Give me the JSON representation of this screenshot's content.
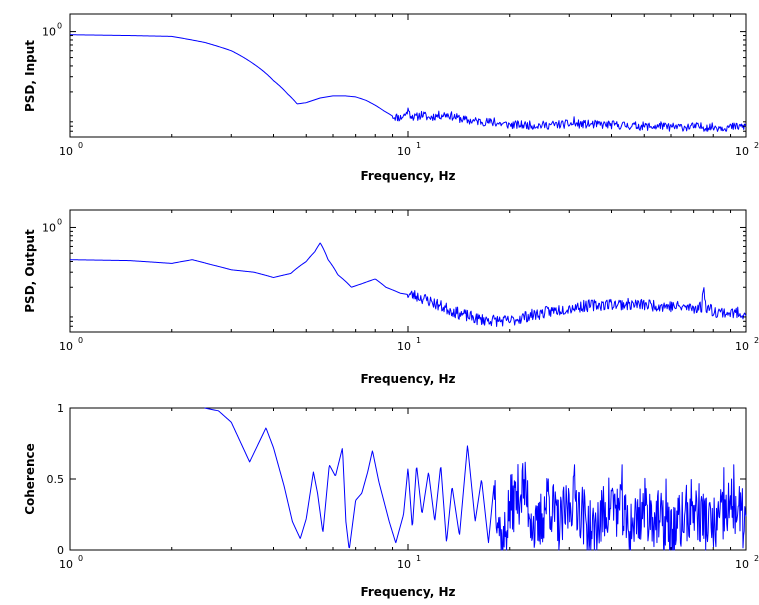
{
  "chart_data": [
    {
      "type": "line",
      "xlabel": "Frequency, Hz",
      "ylabel": "PSD, Input",
      "xscale": "log",
      "yscale": "log",
      "xlim": [
        1,
        100
      ],
      "ylim": [
        0.06,
        1.6
      ],
      "xticks": [
        {
          "value": 1,
          "base": "10",
          "exp": "0"
        },
        {
          "value": 10,
          "base": "10",
          "exp": "1"
        },
        {
          "value": 100,
          "base": "10",
          "exp": "2"
        }
      ],
      "yticks": [
        {
          "value": 1,
          "base": "10",
          "exp": "0"
        }
      ],
      "grid": false,
      "color": "#0000ff",
      "anchors": [
        [
          1.0,
          0.92
        ],
        [
          1.5,
          0.9
        ],
        [
          2.0,
          0.88
        ],
        [
          2.5,
          0.75
        ],
        [
          3.0,
          0.6
        ],
        [
          3.5,
          0.42
        ],
        [
          4.0,
          0.27
        ],
        [
          4.4,
          0.19
        ],
        [
          4.7,
          0.145
        ],
        [
          5.0,
          0.15
        ],
        [
          5.5,
          0.17
        ],
        [
          6.0,
          0.18
        ],
        [
          6.5,
          0.18
        ],
        [
          7.0,
          0.175
        ],
        [
          7.5,
          0.16
        ],
        [
          8.0,
          0.14
        ],
        [
          8.5,
          0.12
        ],
        [
          9.0,
          0.105
        ],
        [
          9.5,
          0.1
        ],
        [
          10.0,
          0.115
        ],
        [
          10.5,
          0.1
        ],
        [
          11.0,
          0.11
        ],
        [
          11.5,
          0.1
        ],
        [
          12.0,
          0.105
        ],
        [
          13.0,
          0.11
        ],
        [
          14.0,
          0.1
        ],
        [
          15.0,
          0.093
        ],
        [
          17.0,
          0.09
        ],
        [
          20.0,
          0.083
        ],
        [
          25.0,
          0.082
        ],
        [
          30.0,
          0.085
        ],
        [
          40.0,
          0.083
        ],
        [
          50.0,
          0.08
        ],
        [
          60.0,
          0.078
        ],
        [
          70.0,
          0.079
        ],
        [
          80.0,
          0.078
        ],
        [
          90.0,
          0.078
        ],
        [
          100.0,
          0.08
        ]
      ],
      "spikes": [
        [
          10.0,
          0.13
        ],
        [
          12.8,
          0.115
        ],
        [
          18.0,
          0.1
        ],
        [
          31.0,
          0.103
        ],
        [
          36.0,
          0.09
        ],
        [
          56.0,
          0.09
        ]
      ],
      "noise": {
        "start": 9.0,
        "amplitude": 0.05,
        "seed": 11
      }
    },
    {
      "type": "line",
      "xlabel": "Frequency, Hz",
      "ylabel": "PSD, Output",
      "xscale": "log",
      "yscale": "log",
      "xlim": [
        1,
        100
      ],
      "ylim": [
        0.06,
        1.6
      ],
      "xticks": [
        {
          "value": 1,
          "base": "10",
          "exp": "0"
        },
        {
          "value": 10,
          "base": "10",
          "exp": "1"
        },
        {
          "value": 100,
          "base": "10",
          "exp": "2"
        }
      ],
      "yticks": [
        {
          "value": 1,
          "base": "10",
          "exp": "0"
        }
      ],
      "grid": false,
      "color": "#0000ff",
      "anchors": [
        [
          1.0,
          0.42
        ],
        [
          1.5,
          0.41
        ],
        [
          2.0,
          0.38
        ],
        [
          2.3,
          0.42
        ],
        [
          2.6,
          0.37
        ],
        [
          3.0,
          0.32
        ],
        [
          3.5,
          0.3
        ],
        [
          4.0,
          0.26
        ],
        [
          4.5,
          0.29
        ],
        [
          5.0,
          0.4
        ],
        [
          5.3,
          0.52
        ],
        [
          5.5,
          0.66
        ],
        [
          5.8,
          0.42
        ],
        [
          6.2,
          0.28
        ],
        [
          6.8,
          0.2
        ],
        [
          7.3,
          0.22
        ],
        [
          8.0,
          0.25
        ],
        [
          8.6,
          0.2
        ],
        [
          9.5,
          0.17
        ],
        [
          10.5,
          0.16
        ],
        [
          11.5,
          0.14
        ],
        [
          12.5,
          0.12
        ],
        [
          14.0,
          0.1
        ],
        [
          16.0,
          0.085
        ],
        [
          18.0,
          0.082
        ],
        [
          20.0,
          0.08
        ],
        [
          22.0,
          0.09
        ],
        [
          25.0,
          0.1
        ],
        [
          30.0,
          0.115
        ],
        [
          35.0,
          0.123
        ],
        [
          40.0,
          0.128
        ],
        [
          50.0,
          0.125
        ],
        [
          60.0,
          0.12
        ],
        [
          70.0,
          0.115
        ],
        [
          74.0,
          0.118
        ],
        [
          75.0,
          0.2
        ],
        [
          76.0,
          0.12
        ],
        [
          80.0,
          0.105
        ],
        [
          90.0,
          0.1
        ],
        [
          100.0,
          0.1
        ]
      ],
      "spikes": [],
      "noise": {
        "start": 10.0,
        "amplitude": 0.07,
        "seed": 23
      }
    },
    {
      "type": "line",
      "xlabel": "Frequency, Hz",
      "ylabel": "Coherence",
      "xscale": "log",
      "yscale": "linear",
      "xlim": [
        1,
        100
      ],
      "ylim": [
        0,
        1
      ],
      "xticks": [
        {
          "value": 1,
          "base": "10",
          "exp": "0"
        },
        {
          "value": 10,
          "base": "10",
          "exp": "1"
        },
        {
          "value": 100,
          "base": "10",
          "exp": "2"
        }
      ],
      "yticks": [
        {
          "value": 0,
          "label": "0"
        },
        {
          "value": 0.5,
          "label": "0.5"
        },
        {
          "value": 1,
          "label": "1"
        }
      ],
      "grid": false,
      "color": "#0000ff",
      "anchors": [
        [
          2.5,
          1.0
        ],
        [
          2.75,
          0.98
        ],
        [
          3.0,
          0.9
        ],
        [
          3.4,
          0.62
        ],
        [
          3.8,
          0.86
        ],
        [
          4.0,
          0.72
        ],
        [
          4.3,
          0.45
        ],
        [
          4.55,
          0.2
        ],
        [
          4.8,
          0.08
        ],
        [
          5.0,
          0.22
        ],
        [
          5.25,
          0.55
        ],
        [
          5.4,
          0.4
        ],
        [
          5.6,
          0.12
        ],
        [
          5.85,
          0.6
        ],
        [
          6.1,
          0.52
        ],
        [
          6.4,
          0.72
        ],
        [
          6.55,
          0.2
        ],
        [
          6.7,
          0.0
        ],
        [
          7.0,
          0.35
        ],
        [
          7.3,
          0.4
        ],
        [
          7.6,
          0.55
        ],
        [
          7.85,
          0.7
        ],
        [
          8.2,
          0.48
        ],
        [
          8.8,
          0.2
        ],
        [
          9.2,
          0.05
        ],
        [
          9.7,
          0.25
        ],
        [
          10.0,
          0.58
        ],
        [
          10.3,
          0.15
        ],
        [
          10.6,
          0.6
        ],
        [
          11.0,
          0.25
        ],
        [
          11.5,
          0.55
        ],
        [
          12.0,
          0.2
        ],
        [
          12.5,
          0.6
        ],
        [
          13.0,
          0.05
        ],
        [
          13.5,
          0.45
        ],
        [
          14.2,
          0.1
        ],
        [
          15.0,
          0.74
        ],
        [
          15.8,
          0.2
        ],
        [
          16.5,
          0.5
        ],
        [
          17.3,
          0.05
        ],
        [
          18.0,
          0.48
        ],
        [
          19.0,
          0.0
        ],
        [
          20.0,
          0.3
        ],
        [
          22.0,
          0.45
        ],
        [
          24.0,
          0.1
        ],
        [
          26.0,
          0.38
        ],
        [
          28.0,
          0.15
        ],
        [
          31.0,
          0.4
        ],
        [
          35.0,
          0.1
        ],
        [
          40.0,
          0.35
        ],
        [
          45.0,
          0.15
        ],
        [
          50.0,
          0.3
        ],
        [
          60.0,
          0.12
        ],
        [
          70.0,
          0.3
        ],
        [
          80.0,
          0.15
        ],
        [
          90.0,
          0.3
        ],
        [
          100.0,
          0.2
        ]
      ],
      "spikes": [
        [
          26.0,
          0.5
        ],
        [
          43.0,
          0.6
        ],
        [
          58.0,
          0.5
        ],
        [
          86.0,
          0.58
        ],
        [
          92.0,
          0.6
        ]
      ],
      "noise": {
        "start": 18.0,
        "amplitude": 0.22,
        "seed": 37
      }
    }
  ]
}
